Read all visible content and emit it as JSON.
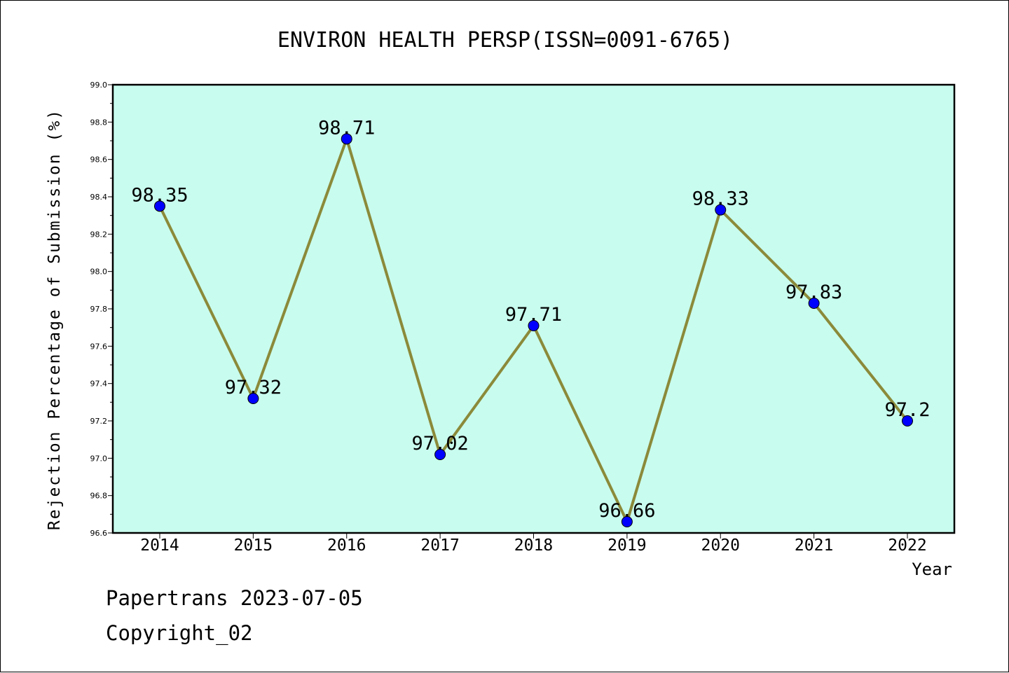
{
  "chart_data": {
    "type": "line",
    "title": "ENVIRON HEALTH PERSP(ISSN=0091-6765)",
    "xlabel": "Year",
    "ylabel": "Rejection Percentage of Submission (%)",
    "categories": [
      "2014",
      "2015",
      "2016",
      "2017",
      "2018",
      "2019",
      "2020",
      "2021",
      "2022"
    ],
    "values": [
      98.35,
      97.32,
      98.71,
      97.02,
      97.71,
      96.66,
      98.33,
      97.83,
      97.2
    ],
    "data_labels": [
      "98.35",
      "97.32",
      "98.71",
      "97.02",
      "97.71",
      "96.66",
      "98.33",
      "97.83",
      "97.2"
    ],
    "ylim": [
      96.6,
      99.0
    ],
    "yticks": [
      "96.6",
      "96.8",
      "97.0",
      "97.2",
      "97.4",
      "97.6",
      "97.8",
      "98.0",
      "98.2",
      "98.4",
      "98.6",
      "98.8",
      "99.0"
    ],
    "grid": false,
    "colors": {
      "plot_background": "#c8fcee",
      "line": "#8b8a3a",
      "marker": "#0000ff"
    }
  },
  "footer": {
    "line1": "Papertrans 2023-07-05",
    "line2": "Copyright_02"
  }
}
